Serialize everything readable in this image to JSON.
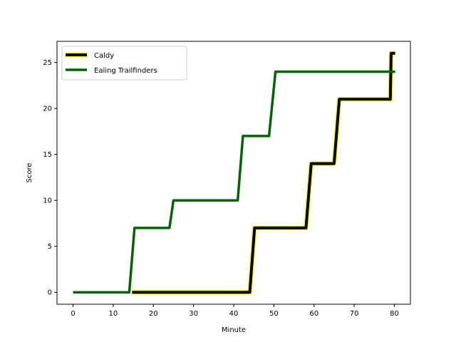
{
  "chart_data": {
    "type": "line",
    "title": "",
    "xlabel": "Minute",
    "ylabel": "Score",
    "xlim": [
      -4,
      84
    ],
    "ylim": [
      -1.3,
      27.3
    ],
    "xticks": [
      0,
      10,
      20,
      30,
      40,
      50,
      60,
      70,
      80
    ],
    "yticks": [
      0,
      5,
      10,
      15,
      20,
      25
    ],
    "grid": false,
    "legend_position": "top-left",
    "series": [
      {
        "name": "Caldy",
        "color": "#000000",
        "outline_color": "#ffff00",
        "x": [
          14.7,
          44.0,
          45.2,
          58.0,
          59.3,
          65.0,
          66.3,
          79.0,
          79.2,
          80.2
        ],
        "y": [
          0,
          0,
          7,
          7,
          14,
          14,
          21,
          21,
          26,
          26
        ]
      },
      {
        "name": "Ealing Trailfinders",
        "color": "#006400",
        "x": [
          0,
          14.0,
          15.3,
          24.0,
          25.0,
          41.0,
          42.3,
          48.8,
          50.4,
          80.2
        ],
        "y": [
          0,
          0,
          7,
          7,
          10,
          10,
          17,
          17,
          24,
          24
        ]
      }
    ]
  }
}
